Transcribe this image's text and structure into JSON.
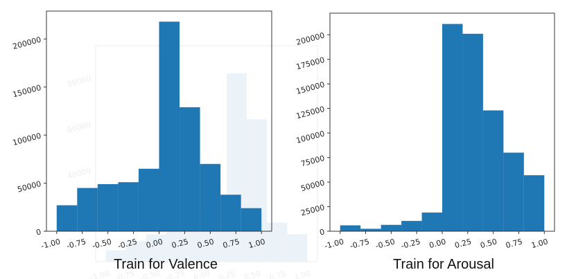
{
  "chart_data": [
    {
      "type": "bar",
      "title": "Train for Valence",
      "xlabel": "",
      "ylabel": "",
      "bin_edges": [
        -1.0,
        -0.8,
        -0.6,
        -0.4,
        -0.2,
        0.0,
        0.2,
        0.4,
        0.6,
        0.8,
        1.0
      ],
      "values": [
        27000,
        45000,
        49000,
        51000,
        65000,
        218000,
        129000,
        70000,
        38000,
        24000
      ],
      "xticks": [
        "-1.00",
        "-0.75",
        "-0.50",
        "-0.25",
        "0.00",
        "0.25",
        "0.50",
        "0.75",
        "1.00"
      ],
      "xtick_values": [
        -1.0,
        -0.75,
        -0.5,
        -0.25,
        0.0,
        0.25,
        0.5,
        0.75,
        1.0
      ],
      "yticks": [
        "0",
        "50000",
        "100000",
        "150000",
        "200000"
      ],
      "ytick_values": [
        0,
        50000,
        100000,
        150000,
        200000
      ],
      "xlim": [
        -1.1,
        1.1
      ],
      "ylim": [
        0,
        229000
      ],
      "color": "#1f77b4",
      "grid": false
    },
    {
      "type": "bar",
      "title": "Train for Arousal",
      "xlabel": "",
      "ylabel": "",
      "bin_edges": [
        -1.0,
        -0.8,
        -0.6,
        -0.4,
        -0.2,
        0.0,
        0.2,
        0.4,
        0.6,
        0.8,
        1.0
      ],
      "values": [
        6000,
        2500,
        6500,
        10500,
        19000,
        211000,
        201000,
        123000,
        80000,
        57000
      ],
      "xticks": [
        "-1.00",
        "-0.75",
        "-0.50",
        "-0.25",
        "0.00",
        "0.25",
        "0.50",
        "0.75",
        "1.00"
      ],
      "xtick_values": [
        -1.0,
        -0.75,
        -0.5,
        -0.25,
        0.0,
        0.25,
        0.5,
        0.75,
        1.0
      ],
      "yticks": [
        "0",
        "25000",
        "50000",
        "75000",
        "100000",
        "125000",
        "150000",
        "175000",
        "200000"
      ],
      "ytick_values": [
        0,
        25000,
        50000,
        75000,
        100000,
        125000,
        150000,
        175000,
        200000
      ],
      "xlim": [
        -1.1,
        1.1
      ],
      "ylim": [
        0,
        222000
      ],
      "color": "#1f77b4",
      "grid": false
    }
  ],
  "ghost_chart": {
    "values": [
      5000,
      9000,
      12000,
      16000,
      21000,
      28000,
      82000,
      62000,
      17000,
      12000
    ],
    "ylim": [
      0,
      94000
    ],
    "yticks": [
      "20000",
      "40000",
      "60000",
      "80000"
    ],
    "ytick_values": [
      20000,
      40000,
      60000,
      80000
    ],
    "xticks": [
      "-1.00",
      "-0.75",
      "-0.50",
      "-0.25",
      "0.00",
      "0.25",
      "0.50",
      "0.75",
      "1.00"
    ],
    "color": "#1f77b4"
  }
}
